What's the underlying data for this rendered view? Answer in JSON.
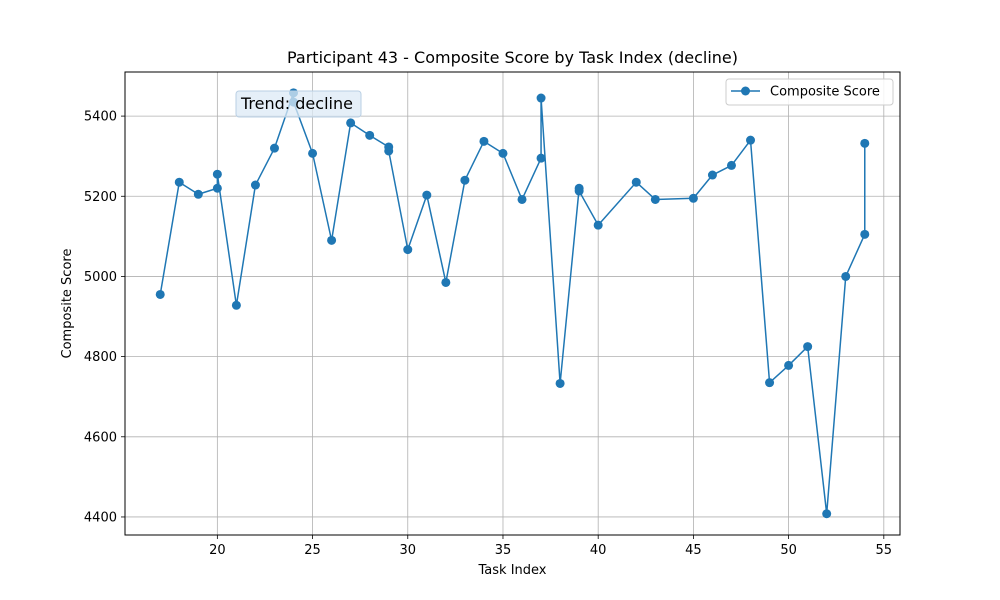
{
  "chart_data": {
    "type": "line",
    "title": "Participant 43 - Composite Score by Task Index (decline)",
    "xlabel": "Task Index",
    "ylabel": "Composite Score",
    "xlim": [
      15.15,
      55.85
    ],
    "ylim": [
      4355,
      5510
    ],
    "xticks": [
      20,
      25,
      30,
      35,
      40,
      45,
      50,
      55
    ],
    "yticks": [
      4400,
      4600,
      4800,
      5000,
      5200,
      5400
    ],
    "grid": true,
    "legend_position": "top-right",
    "annotation": "Trend: decline",
    "series": [
      {
        "name": "Composite Score",
        "color": "#1f77b4",
        "marker": "circle",
        "points": [
          [
            17,
            4955
          ],
          [
            18,
            5235
          ],
          [
            19,
            5205
          ],
          [
            20,
            5220
          ],
          [
            20,
            5255
          ],
          [
            21,
            4928
          ],
          [
            22,
            5228
          ],
          [
            23,
            5320
          ],
          [
            24,
            5458
          ],
          [
            24,
            5435
          ],
          [
            25,
            5307
          ],
          [
            26,
            5090
          ],
          [
            27,
            5383
          ],
          [
            28,
            5352
          ],
          [
            29,
            5323
          ],
          [
            29,
            5313
          ],
          [
            30,
            5067
          ],
          [
            31,
            5203
          ],
          [
            32,
            4985
          ],
          [
            33,
            5240
          ],
          [
            34,
            5337
          ],
          [
            35,
            5307
          ],
          [
            36,
            5192
          ],
          [
            37,
            5295
          ],
          [
            37,
            5445
          ],
          [
            38,
            4733
          ],
          [
            39,
            5220
          ],
          [
            39,
            5213
          ],
          [
            40,
            5128
          ],
          [
            42,
            5235
          ],
          [
            43,
            5192
          ],
          [
            45,
            5195
          ],
          [
            46,
            5253
          ],
          [
            47,
            5277
          ],
          [
            48,
            5340
          ],
          [
            49,
            4735
          ],
          [
            50,
            4778
          ],
          [
            51,
            4825
          ],
          [
            52,
            4408
          ],
          [
            53,
            5000
          ],
          [
            54,
            5105
          ],
          [
            54,
            5332
          ]
        ]
      }
    ]
  }
}
